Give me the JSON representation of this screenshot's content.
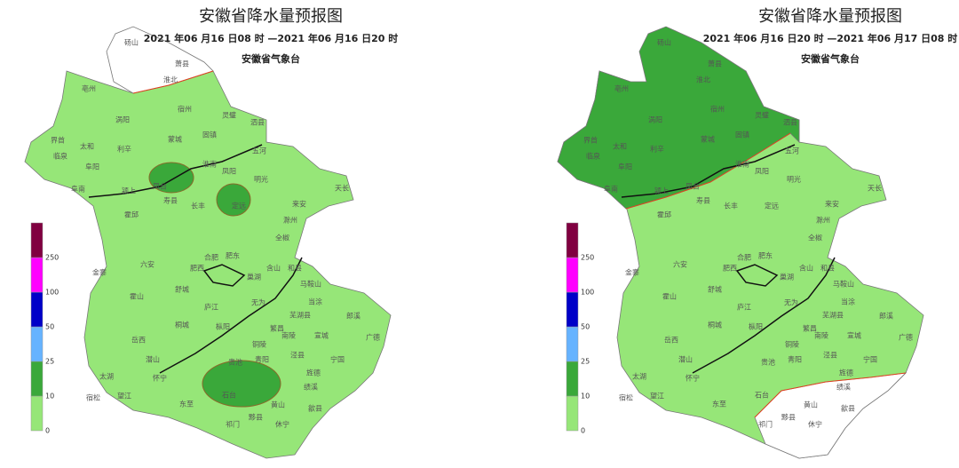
{
  "maps": [
    {
      "title": "安徽省降水量预报图",
      "subtitle": "2021 年06 月16 日08 时 —2021 年06 月16 日20 时",
      "issuer": "安徽省气象台",
      "legend": [
        0,
        10,
        25,
        50,
        100,
        250
      ],
      "legend_colors": [
        "#96e678",
        "#3aa83a",
        "#66b3ff",
        "#0000c8",
        "#ff00ff",
        "#800040"
      ]
    },
    {
      "title": "安徽省降水量预报图",
      "subtitle": "2021 年06 月16 日20 时 —2021 年06 月17 日08 时",
      "issuer": "安徽省气象台",
      "legend": [
        0,
        10,
        25,
        50,
        100,
        250
      ],
      "legend_colors": [
        "#96e678",
        "#3aa83a",
        "#66b3ff",
        "#0000c8",
        "#ff00ff",
        "#800040"
      ]
    }
  ],
  "cities": [
    "砀山",
    "萧县",
    "淮北",
    "亳州",
    "涡阳",
    "宿州",
    "灵璧",
    "泗县",
    "界首",
    "太和",
    "临泉",
    "利辛",
    "蒙城",
    "固镇",
    "阜阳",
    "五河",
    "阜南",
    "颍上",
    "凤台",
    "淮南",
    "凤阳",
    "明光",
    "天长",
    "寿县",
    "长丰",
    "定远",
    "霍邱",
    "来安",
    "滁州",
    "全椒",
    "六安",
    "合肥",
    "肥东",
    "肥西",
    "金寨",
    "含山",
    "和县",
    "巢湖",
    "马鞍山",
    "霍山",
    "舒城",
    "庐江",
    "无为",
    "当涂",
    "芜湖县",
    "郎溪",
    "枞阳",
    "繁昌",
    "南陵",
    "桐城",
    "宣城",
    "广德",
    "岳西",
    "铜陵",
    "潜山",
    "泾县",
    "宁国",
    "太湖",
    "怀宁",
    "贵池",
    "青阳",
    "宿松",
    "望江",
    "东至",
    "石台",
    "旌德",
    "绩溪",
    "黄山",
    "歙县",
    "祁门",
    "黟县",
    "休宁"
  ]
}
